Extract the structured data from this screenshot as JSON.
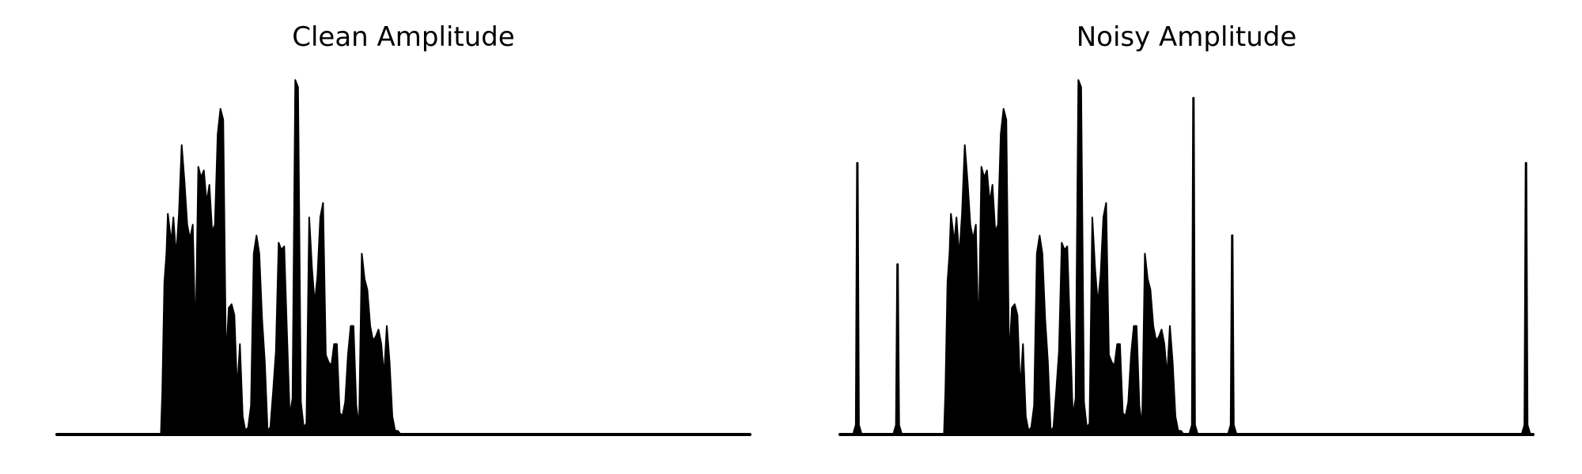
{
  "colors": {
    "background": "#ffffff",
    "signal": "#000000"
  },
  "chart_data": [
    {
      "type": "line",
      "title": "Clean Amplitude",
      "axes_visible": false,
      "grid": false,
      "legend": "none",
      "xlim": [
        0,
        1000
      ],
      "ylim": [
        0,
        1
      ],
      "envelope_x": [
        0,
        150,
        152,
        155,
        158,
        160,
        165,
        168,
        172,
        176,
        180,
        184,
        188,
        192,
        196,
        200,
        204,
        208,
        212,
        216,
        220,
        224,
        228,
        232,
        236,
        240,
        244,
        248,
        252,
        256,
        260,
        264,
        268,
        272,
        276,
        280,
        284,
        288,
        292,
        296,
        300,
        304,
        308,
        312,
        316,
        320,
        324,
        328,
        332,
        336,
        340,
        344,
        348,
        352,
        356,
        360,
        364,
        368,
        372,
        376,
        380,
        384,
        388,
        392,
        396,
        400,
        404,
        408,
        412,
        416,
        420,
        424,
        428,
        432,
        436,
        440,
        444,
        448,
        452,
        456,
        460,
        464,
        468,
        472,
        476,
        480,
        484,
        488,
        492,
        496,
        500,
        504,
        508,
        512,
        516,
        520,
        524,
        528,
        532,
        536,
        540,
        544,
        548,
        552,
        556,
        560,
        564,
        568,
        572,
        576,
        580,
        584,
        588,
        592,
        596,
        600,
        604,
        608,
        612,
        616,
        620,
        624,
        628,
        632,
        636,
        640,
        645,
        650,
        700,
        800,
        900,
        1000
      ],
      "envelope_y": [
        0.0,
        0.0,
        0.12,
        0.42,
        0.5,
        0.61,
        0.53,
        0.6,
        0.49,
        0.61,
        0.8,
        0.7,
        0.58,
        0.54,
        0.58,
        0.25,
        0.74,
        0.71,
        0.73,
        0.64,
        0.69,
        0.56,
        0.58,
        0.83,
        0.9,
        0.87,
        0.2,
        0.35,
        0.36,
        0.33,
        0.12,
        0.25,
        0.05,
        0.01,
        0.02,
        0.08,
        0.5,
        0.55,
        0.5,
        0.32,
        0.2,
        0.01,
        0.02,
        0.12,
        0.23,
        0.53,
        0.51,
        0.52,
        0.28,
        0.05,
        0.1,
        0.98,
        0.96,
        0.09,
        0.02,
        0.03,
        0.6,
        0.46,
        0.36,
        0.44,
        0.6,
        0.64,
        0.22,
        0.2,
        0.19,
        0.25,
        0.25,
        0.06,
        0.05,
        0.09,
        0.22,
        0.3,
        0.3,
        0.08,
        0.02,
        0.5,
        0.43,
        0.4,
        0.3,
        0.26,
        0.27,
        0.29,
        0.25,
        0.16,
        0.3,
        0.2,
        0.05,
        0.01,
        0.01,
        0.0,
        0.0,
        0.0,
        0.0,
        0.0,
        0.0,
        0.0,
        0.0,
        0.0,
        0.0,
        0.0,
        0.0,
        0.0,
        0.0,
        0.0,
        0.0,
        0.0,
        0.0,
        0.0,
        0.0,
        0.0,
        0.0,
        0.0,
        0.0,
        0.0,
        0.0,
        0.0,
        0.0,
        0.0,
        0.0,
        0.0,
        0.0,
        0.0,
        0.0,
        0.0,
        0.0,
        0.0,
        0.0,
        0.0,
        0.0,
        0.0,
        0.0,
        0.0
      ],
      "spikes": []
    },
    {
      "type": "line",
      "title": "Noisy Amplitude",
      "axes_visible": false,
      "grid": false,
      "legend": "none",
      "xlim": [
        0,
        1000
      ],
      "ylim": [
        0,
        1
      ],
      "envelope_x": [
        0,
        150,
        152,
        155,
        158,
        160,
        165,
        168,
        172,
        176,
        180,
        184,
        188,
        192,
        196,
        200,
        204,
        208,
        212,
        216,
        220,
        224,
        228,
        232,
        236,
        240,
        244,
        248,
        252,
        256,
        260,
        264,
        268,
        272,
        276,
        280,
        284,
        288,
        292,
        296,
        300,
        304,
        308,
        312,
        316,
        320,
        324,
        328,
        332,
        336,
        340,
        344,
        348,
        352,
        356,
        360,
        364,
        368,
        372,
        376,
        380,
        384,
        388,
        392,
        396,
        400,
        404,
        408,
        412,
        416,
        420,
        424,
        428,
        432,
        436,
        440,
        444,
        448,
        452,
        456,
        460,
        464,
        468,
        472,
        476,
        480,
        484,
        488,
        492,
        496,
        500,
        504,
        508,
        512,
        516,
        520,
        524,
        528,
        532,
        536,
        540,
        544,
        548,
        552,
        556,
        560,
        564,
        568,
        572,
        576,
        580,
        584,
        588,
        592,
        596,
        600,
        604,
        608,
        612,
        616,
        620,
        624,
        628,
        632,
        636,
        640,
        645,
        650,
        700,
        800,
        900,
        1000
      ],
      "envelope_y": [
        0.0,
        0.0,
        0.12,
        0.42,
        0.5,
        0.61,
        0.53,
        0.6,
        0.49,
        0.61,
        0.8,
        0.7,
        0.58,
        0.54,
        0.58,
        0.25,
        0.74,
        0.71,
        0.73,
        0.64,
        0.69,
        0.56,
        0.58,
        0.83,
        0.9,
        0.87,
        0.2,
        0.35,
        0.36,
        0.33,
        0.12,
        0.25,
        0.05,
        0.01,
        0.02,
        0.08,
        0.5,
        0.55,
        0.5,
        0.32,
        0.2,
        0.01,
        0.02,
        0.12,
        0.23,
        0.53,
        0.51,
        0.52,
        0.28,
        0.05,
        0.1,
        0.98,
        0.96,
        0.09,
        0.02,
        0.03,
        0.6,
        0.46,
        0.36,
        0.44,
        0.6,
        0.64,
        0.22,
        0.2,
        0.19,
        0.25,
        0.25,
        0.06,
        0.05,
        0.09,
        0.22,
        0.3,
        0.3,
        0.08,
        0.02,
        0.5,
        0.43,
        0.4,
        0.3,
        0.26,
        0.27,
        0.29,
        0.25,
        0.16,
        0.3,
        0.2,
        0.05,
        0.01,
        0.01,
        0.0,
        0.0,
        0.0,
        0.0,
        0.0,
        0.0,
        0.0,
        0.0,
        0.0,
        0.0,
        0.0,
        0.0,
        0.0,
        0.0,
        0.0,
        0.0,
        0.0,
        0.0,
        0.0,
        0.0,
        0.0,
        0.0,
        0.0,
        0.0,
        0.0,
        0.0,
        0.0,
        0.0,
        0.0,
        0.0,
        0.0,
        0.0,
        0.0,
        0.0,
        0.0,
        0.0,
        0.0,
        0.0,
        0.0,
        0.0,
        0.0,
        0.0,
        0.0
      ],
      "spikes": [
        {
          "x": 25,
          "y": 0.75
        },
        {
          "x": 83,
          "y": 0.47
        },
        {
          "x": 510,
          "y": 0.93
        },
        {
          "x": 566,
          "y": 0.55
        },
        {
          "x": 990,
          "y": 0.75
        }
      ]
    }
  ]
}
